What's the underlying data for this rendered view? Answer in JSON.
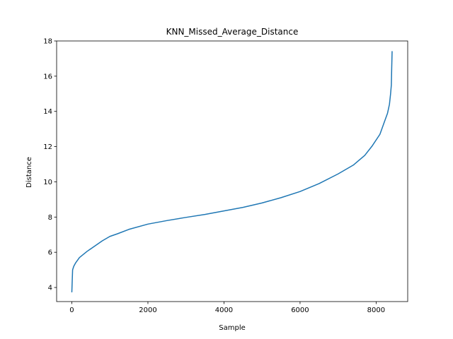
{
  "chart_data": {
    "type": "line",
    "title": "KNN_Missed_Average_Distance",
    "xlabel": "Sample",
    "ylabel": "Distance",
    "xlim": [
      -400,
      8830
    ],
    "ylim": [
      3.2,
      18
    ],
    "xticks": [
      0,
      2000,
      4000,
      6000,
      8000
    ],
    "yticks": [
      4,
      6,
      8,
      10,
      12,
      14,
      16,
      18
    ],
    "grid": false,
    "series": [
      {
        "color": "#1f77b4",
        "x": [
          0,
          20,
          50,
          100,
          200,
          400,
          600,
          800,
          1000,
          1200,
          1500,
          2000,
          2500,
          3000,
          3500,
          4000,
          4500,
          5000,
          5500,
          6000,
          6500,
          7000,
          7400,
          7700,
          7900,
          8100,
          8200,
          8300,
          8350,
          8380,
          8400,
          8410,
          8420
        ],
        "y": [
          3.75,
          5.0,
          5.2,
          5.4,
          5.7,
          6.05,
          6.35,
          6.65,
          6.9,
          7.05,
          7.3,
          7.6,
          7.8,
          7.98,
          8.15,
          8.35,
          8.55,
          8.8,
          9.1,
          9.45,
          9.9,
          10.45,
          10.95,
          11.5,
          12.05,
          12.7,
          13.3,
          13.9,
          14.4,
          15.0,
          15.5,
          16.5,
          17.4
        ]
      }
    ]
  }
}
